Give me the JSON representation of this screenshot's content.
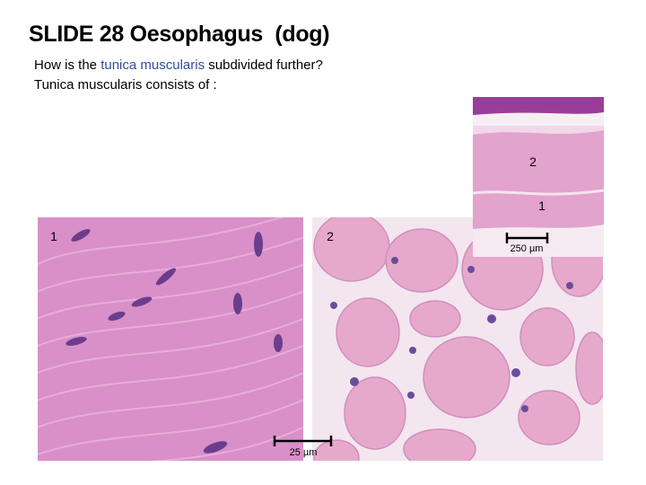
{
  "title": "SLIDE 28 Oesophagus  (dog)",
  "question": {
    "before": "How is the ",
    "highlight": "tunica muscularis",
    "after": " subdivided further?"
  },
  "answer": "Tunica muscularis consists of :",
  "images": [
    {
      "labels": [
        "1",
        "2"
      ],
      "scale_bar": "25 µm"
    },
    {
      "labels": [
        "2",
        "1"
      ],
      "scale_bar": "250 µm"
    }
  ]
}
